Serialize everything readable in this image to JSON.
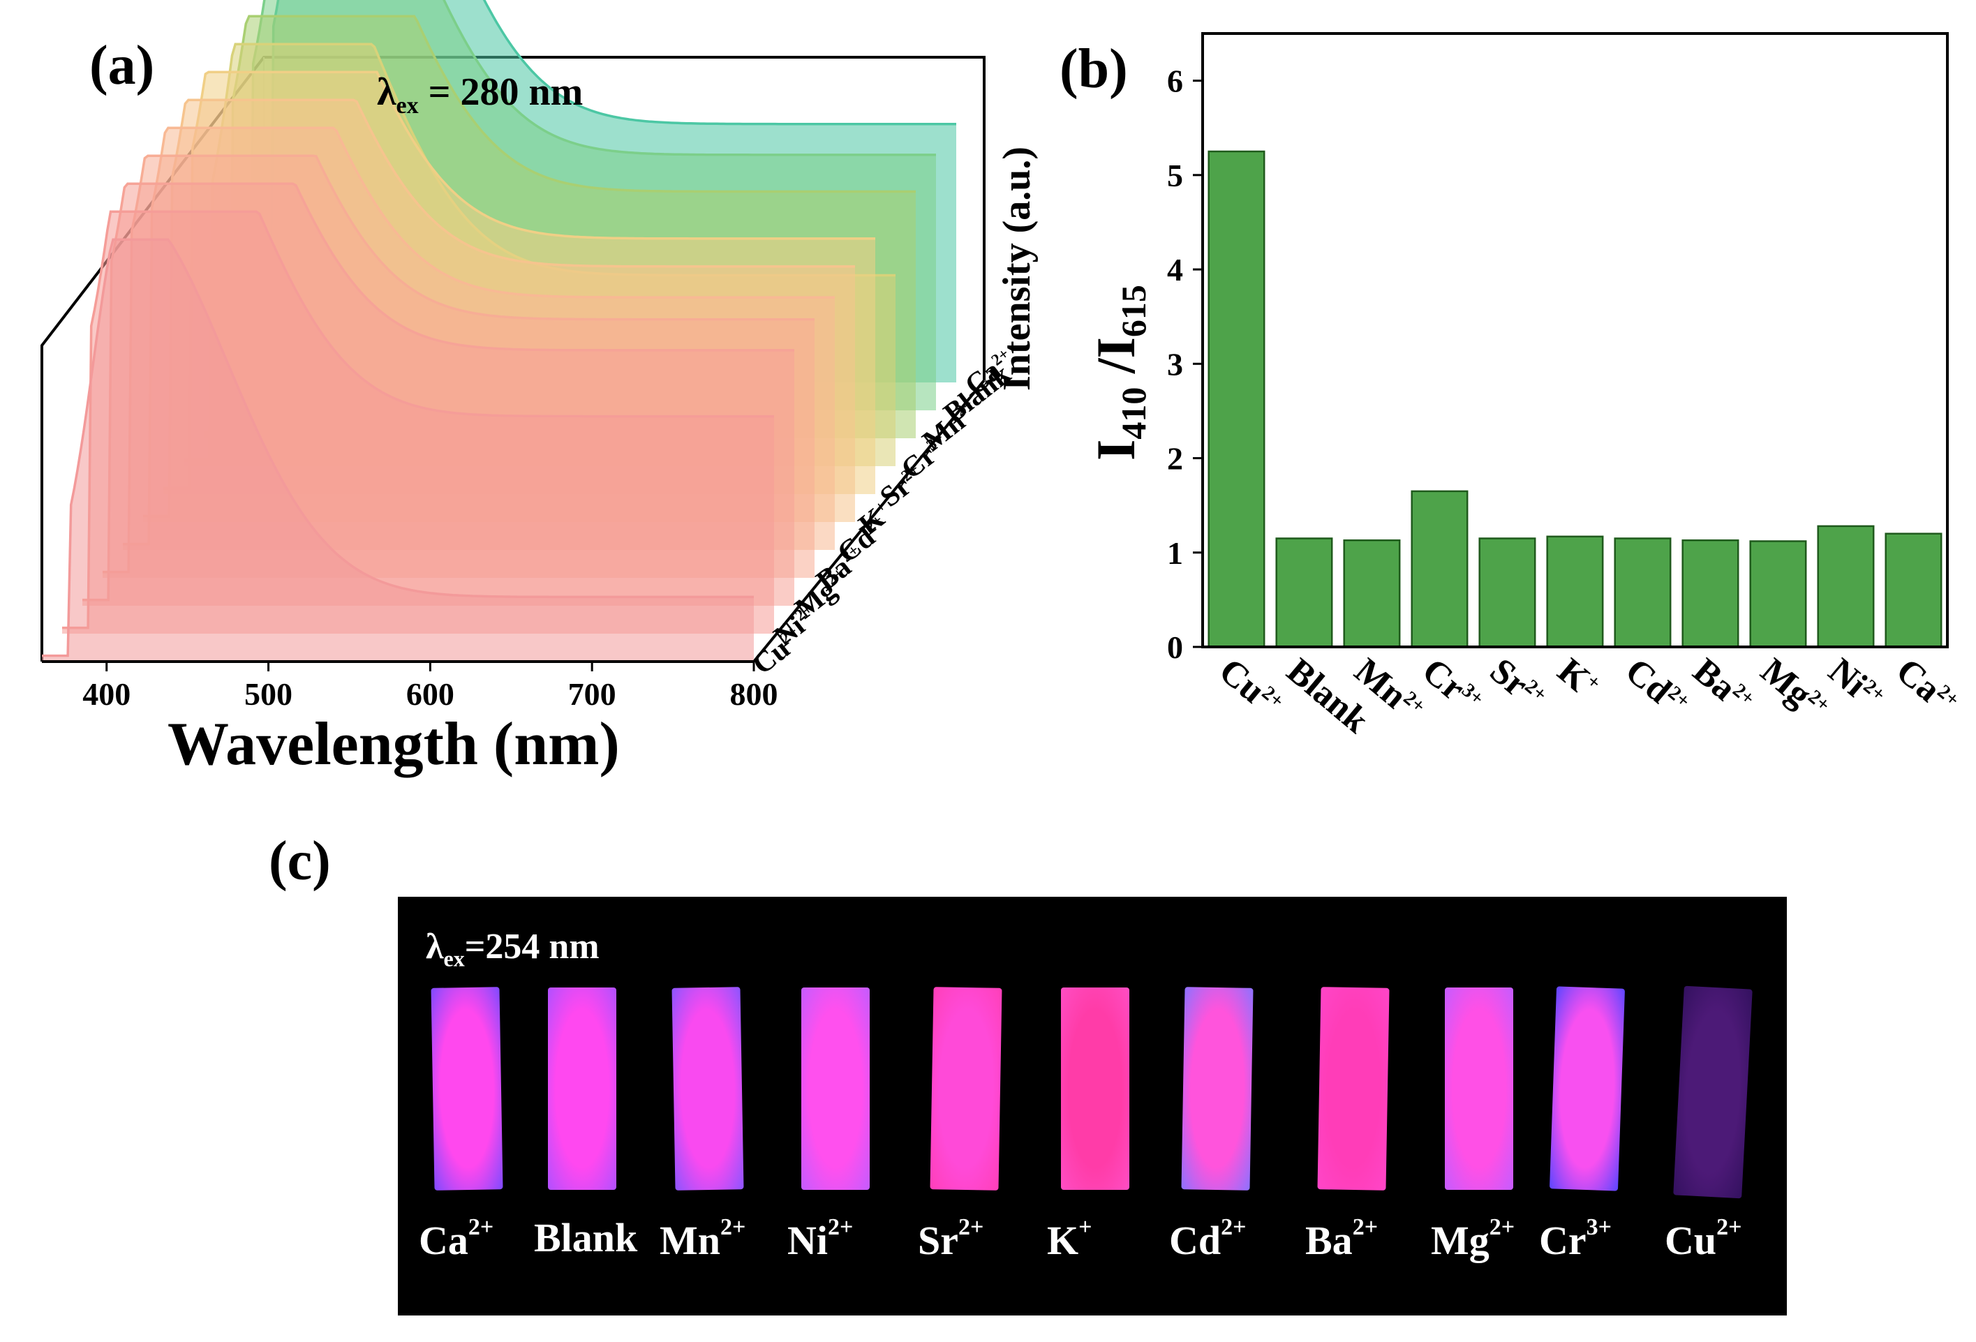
{
  "panel_labels": {
    "a": "(a)",
    "b": "(b)",
    "c": "(c)"
  },
  "colors": {
    "bar_fill": "#4ea34a",
    "bar_stroke": "#1f5a1c",
    "spectra": [
      "#f39a9a",
      "#f59d98",
      "#f6a397",
      "#f7ad95",
      "#f8b994",
      "#f6c48e",
      "#f0cf86",
      "#d8d27a",
      "#a9cf72",
      "#7ccf8a",
      "#4cc7a4",
      "#2cc3bf"
    ]
  },
  "chart_data": [
    {
      "id": "a",
      "type": "area",
      "title": "λex = 280 nm",
      "excitation_label": {
        "symbol": "λ",
        "sub": "ex",
        "rest": " = 280 nm"
      },
      "xlabel": "Wavelength (nm)",
      "zlabel": "Intensity (a.u.)",
      "xlim": [
        360,
        800
      ],
      "xticks": [
        400,
        500,
        600,
        700,
        800
      ],
      "series": [
        {
          "name": "Cu2+",
          "base": "Cu",
          "sup": "2+",
          "blue_peak": 1.0,
          "red_peak": 0.2
        },
        {
          "name": "Ni2+",
          "base": "Ni",
          "sup": "2+",
          "blue_peak": 0.98,
          "red_peak": 0.72
        },
        {
          "name": "Mg2+",
          "base": "Mg",
          "sup": "2+",
          "blue_peak": 0.97,
          "red_peak": 0.85
        },
        {
          "name": "Ba2+",
          "base": "Ba",
          "sup": "2+",
          "blue_peak": 0.96,
          "red_peak": 0.86
        },
        {
          "name": "Cd2+",
          "base": "Cd",
          "sup": "2+",
          "blue_peak": 0.98,
          "red_peak": 0.84
        },
        {
          "name": "K+",
          "base": "K",
          "sup": "+",
          "blue_peak": 0.97,
          "red_peak": 0.85
        },
        {
          "name": "Sr2+",
          "base": "Sr",
          "sup": "2+",
          "blue_peak": 0.98,
          "red_peak": 0.85
        },
        {
          "name": "Cr3+",
          "base": "Cr",
          "sup": "3+",
          "blue_peak": 1.03,
          "red_peak": 0.63
        },
        {
          "name": "Mn2+",
          "base": "Mn",
          "sup": "2+",
          "blue_peak": 1.0,
          "red_peak": 0.82
        },
        {
          "name": "Blank",
          "base": "Blank",
          "sup": "",
          "blue_peak": 0.99,
          "red_peak": 0.85
        },
        {
          "name": "Ca2+",
          "base": "Ca",
          "sup": "2+",
          "blue_peak": 1.06,
          "red_peak": 0.86
        }
      ]
    },
    {
      "id": "b",
      "type": "bar",
      "ylabel": "I410 /I615",
      "ylabel_parts": {
        "a": "I",
        "sub1": "410",
        "b": " /I",
        "sub2": "615"
      },
      "ylim": [
        0,
        6.5
      ],
      "yticks": [
        0,
        1,
        2,
        3,
        4,
        5,
        6
      ],
      "categories": [
        "Cu2+",
        "Blank",
        "Mn2+",
        "Cr3+",
        "Sr2+",
        "K+",
        "Cd2+",
        "Ba2+",
        "Mg2+",
        "Ni2+",
        "Ca2+"
      ],
      "category_parts": [
        {
          "base": "Cu",
          "sup": "2+"
        },
        {
          "base": "Blank",
          "sup": ""
        },
        {
          "base": "Mn",
          "sup": "2+"
        },
        {
          "base": "Cr",
          "sup": "3+"
        },
        {
          "base": "Sr",
          "sup": "2+"
        },
        {
          "base": "K",
          "sup": "+"
        },
        {
          "base": "Cd",
          "sup": "2+"
        },
        {
          "base": "Ba",
          "sup": "2+"
        },
        {
          "base": "Mg",
          "sup": "2+"
        },
        {
          "base": "Ni",
          "sup": "2+"
        },
        {
          "base": "Ca",
          "sup": "2+"
        }
      ],
      "values": [
        5.25,
        1.15,
        1.13,
        1.65,
        1.15,
        1.17,
        1.15,
        1.13,
        1.12,
        1.28,
        1.2
      ]
    }
  ],
  "photo": {
    "excitation": {
      "symbol": "λ",
      "sub": "ex",
      "rest": "=254 nm"
    },
    "strips": [
      {
        "base": "Ca",
        "sup": "2+",
        "color": "#ff48ee",
        "edge": "#7d4bff"
      },
      {
        "base": "Blank",
        "sup": "",
        "color": "#ff48f0",
        "edge": "#b050ff"
      },
      {
        "base": "Mn",
        "sup": "2+",
        "color": "#f94af0",
        "edge": "#8b55ff"
      },
      {
        "base": "Ni",
        "sup": "2+",
        "color": "#ff50ee",
        "edge": "#c35cff"
      },
      {
        "base": "Sr",
        "sup": "2+",
        "color": "#ff4ad8",
        "edge": "#ff3fb8"
      },
      {
        "base": "K",
        "sup": "+",
        "color": "#ff3ca8",
        "edge": "#ff4ec4"
      },
      {
        "base": "Cd",
        "sup": "2+",
        "color": "#ff54dc",
        "edge": "#8c72ff"
      },
      {
        "base": "Ba",
        "sup": "2+",
        "color": "#ff3db8",
        "edge": "#ff46c8"
      },
      {
        "base": "Mg",
        "sup": "2+",
        "color": "#ff50e6",
        "edge": "#c45cff"
      },
      {
        "base": "Cr",
        "sup": "3+",
        "color": "#f850f0",
        "edge": "#5a46ff"
      },
      {
        "base": "Cu",
        "sup": "2+",
        "color": "#5a1e8c",
        "edge": "#3c1470"
      }
    ]
  }
}
